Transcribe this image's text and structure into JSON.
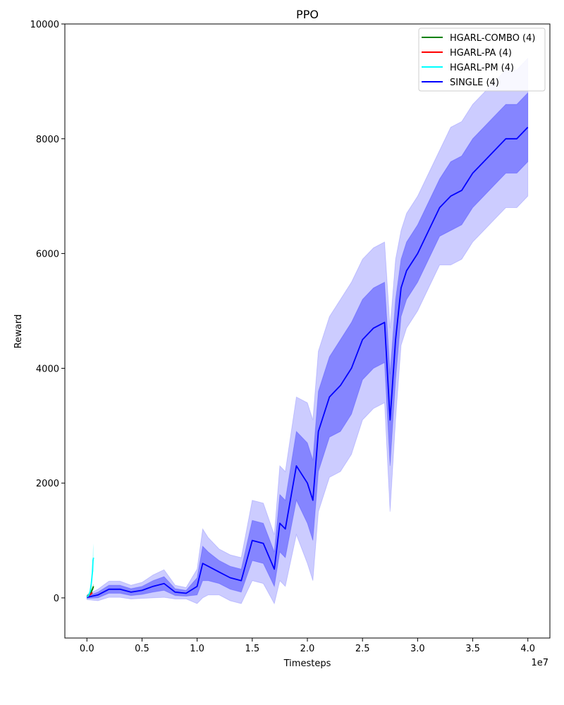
{
  "chart_data": {
    "type": "line",
    "title": "PPO",
    "xlabel": "Timesteps",
    "ylabel": "Reward",
    "x_offset_label": "1e7",
    "xlim": [
      -2000000,
      42000000
    ],
    "ylim": [
      -700,
      10000
    ],
    "x_ticks": [
      0,
      5000000,
      10000000,
      15000000,
      20000000,
      25000000,
      30000000,
      35000000,
      40000000
    ],
    "x_tick_labels": [
      "0.0",
      "0.5",
      "1.0",
      "1.5",
      "2.0",
      "2.5",
      "3.0",
      "3.5",
      "4.0"
    ],
    "y_ticks": [
      0,
      2000,
      4000,
      6000,
      8000,
      10000
    ],
    "y_tick_labels": [
      "0",
      "2000",
      "4000",
      "6000",
      "8000",
      "10000"
    ],
    "legend_position": "top-right",
    "series": [
      {
        "name": "HGARL-COMBO (4)",
        "color": "#008000",
        "x": [
          0,
          100000,
          200000,
          300000,
          400000,
          500000,
          600000
        ],
        "mean": [
          20,
          40,
          60,
          80,
          110,
          150,
          200
        ],
        "std": [
          20,
          25,
          30,
          35,
          40,
          45,
          50
        ]
      },
      {
        "name": "HGARL-PA (4)",
        "color": "#ff0000",
        "x": [
          0,
          100000,
          200000,
          300000,
          400000,
          500000
        ],
        "mean": [
          20,
          30,
          45,
          60,
          75,
          90
        ],
        "std": [
          15,
          15,
          20,
          20,
          25,
          25
        ]
      },
      {
        "name": "HGARL-PM (4)",
        "color": "#00ffff",
        "x": [
          0,
          100000,
          200000,
          300000,
          400000,
          500000,
          550000,
          600000
        ],
        "mean": [
          20,
          30,
          60,
          120,
          250,
          450,
          650,
          700
        ],
        "std": [
          20,
          30,
          40,
          60,
          100,
          150,
          200,
          250
        ]
      },
      {
        "name": "SINGLE (4)",
        "color": "#0000ff",
        "x": [
          0,
          1000000,
          2000000,
          3000000,
          4000000,
          5000000,
          6000000,
          7000000,
          8000000,
          9000000,
          10000000,
          10500000,
          11000000,
          12000000,
          13000000,
          14000000,
          15000000,
          16000000,
          17000000,
          17500000,
          18000000,
          19000000,
          20000000,
          20500000,
          21000000,
          22000000,
          23000000,
          24000000,
          25000000,
          26000000,
          27000000,
          27500000,
          28000000,
          28500000,
          29000000,
          30000000,
          31000000,
          32000000,
          33000000,
          34000000,
          35000000,
          36000000,
          37000000,
          38000000,
          39000000,
          40000000
        ],
        "mean": [
          10,
          50,
          150,
          150,
          100,
          130,
          200,
          250,
          100,
          80,
          200,
          600,
          550,
          450,
          350,
          300,
          1000,
          950,
          500,
          1300,
          1200,
          2300,
          2000,
          1700,
          2900,
          3500,
          3700,
          4000,
          4500,
          4700,
          4800,
          3100,
          4500,
          5400,
          5700,
          6000,
          6400,
          6800,
          7000,
          7100,
          7400,
          7600,
          7800,
          8000,
          8000,
          8200
        ],
        "std_inner": [
          20,
          50,
          70,
          70,
          60,
          70,
          100,
          120,
          60,
          50,
          150,
          300,
          250,
          200,
          200,
          200,
          350,
          350,
          300,
          500,
          500,
          600,
          700,
          700,
          700,
          700,
          800,
          800,
          700,
          700,
          700,
          800,
          700,
          500,
          500,
          500,
          500,
          500,
          600,
          600,
          600,
          600,
          600,
          600,
          600,
          600
        ],
        "std_outer": [
          40,
          100,
          140,
          140,
          120,
          140,
          200,
          240,
          120,
          100,
          300,
          600,
          500,
          400,
          400,
          400,
          700,
          700,
          600,
          1000,
          1000,
          1200,
          1400,
          1400,
          1400,
          1400,
          1500,
          1500,
          1400,
          1400,
          1400,
          1600,
          1400,
          1000,
          1000,
          1000,
          1000,
          1000,
          1200,
          1200,
          1200,
          1200,
          1200,
          1200,
          1200,
          1200
        ]
      }
    ]
  }
}
